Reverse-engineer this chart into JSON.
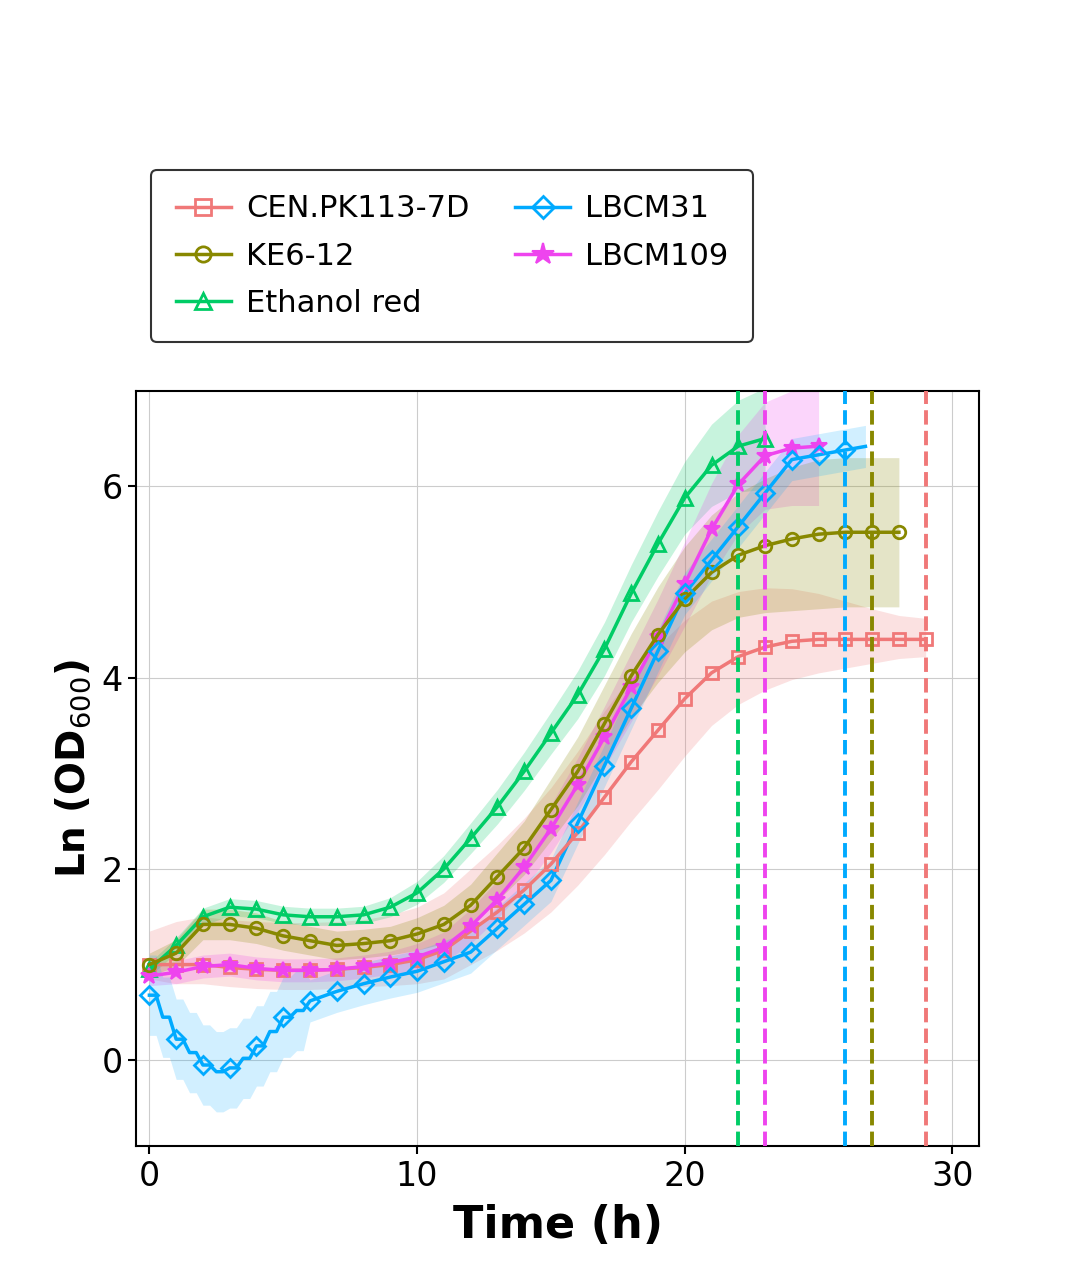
{
  "colors": {
    "CEN.PK113-7D": "#F07878",
    "Ethanol red": "#00CC66",
    "LBCM109": "#EE44EE",
    "KE6-12": "#888800",
    "LBCM31": "#00AAFF"
  },
  "vlines": [
    [
      22.0,
      "#00CC66"
    ],
    [
      23.0,
      "#EE44EE"
    ],
    [
      26.0,
      "#00AAFF"
    ],
    [
      27.0,
      "#888800"
    ],
    [
      29.0,
      "#F07878"
    ]
  ],
  "legend_order": [
    [
      "CEN.PK113-7D",
      "s"
    ],
    [
      "KE6-12",
      "o"
    ],
    [
      "Ethanol red",
      "^"
    ],
    [
      "LBCM31",
      "D"
    ],
    [
      "LBCM109",
      "*"
    ]
  ],
  "xlabel": "Time (h)",
  "ylabel": "Ln (OD$_{600}$)",
  "xlim": [
    -0.5,
    31.0
  ],
  "ylim": [
    -0.9,
    7.0
  ],
  "xticks": [
    0,
    10,
    20,
    30
  ],
  "yticks": [
    0,
    2,
    4,
    6
  ]
}
